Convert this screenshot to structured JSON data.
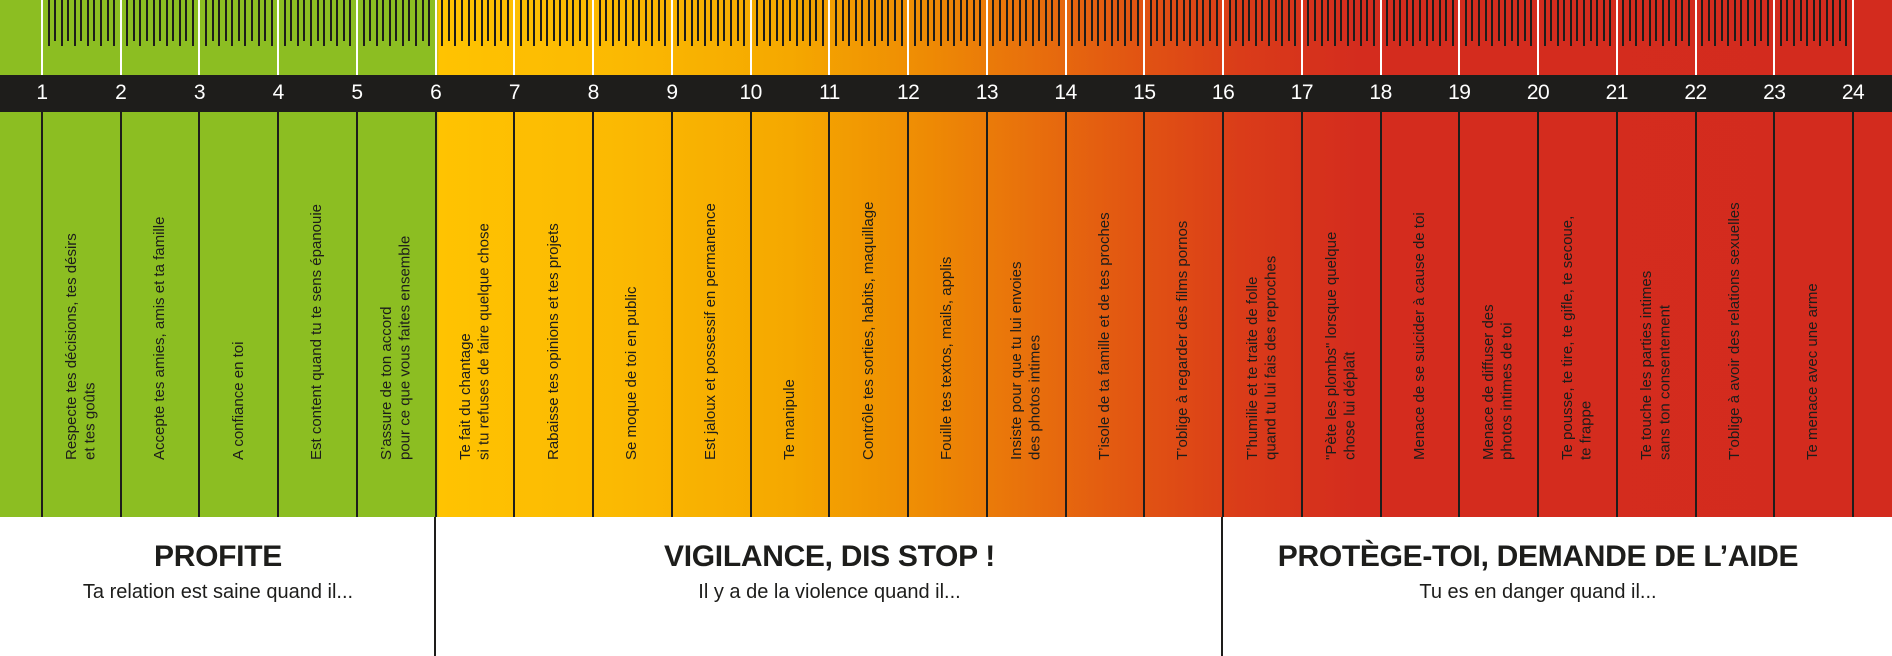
{
  "scale": {
    "numbers": [
      "1",
      "2",
      "3",
      "4",
      "5",
      "6",
      "7",
      "8",
      "9",
      "10",
      "11",
      "12",
      "13",
      "14",
      "15",
      "16",
      "17",
      "18",
      "19",
      "20",
      "21",
      "22",
      "23",
      "24"
    ]
  },
  "items": [
    {
      "n": 1,
      "label": "Respecte tes décisions, tes désirs\net tes goûts"
    },
    {
      "n": 2,
      "label": "Accepte tes amies, amis et ta famille"
    },
    {
      "n": 3,
      "label": "A confiance en toi"
    },
    {
      "n": 4,
      "label": "Est content quand tu te sens épanouie"
    },
    {
      "n": 5,
      "label": "S’assure de ton accord\npour ce que vous faites ensemble"
    },
    {
      "n": 6,
      "label": "Te fait du chantage\nsi tu refuses de faire quelque chose"
    },
    {
      "n": 7,
      "label": "Rabaisse tes opinions et tes projets"
    },
    {
      "n": 8,
      "label": "Se moque de toi en public"
    },
    {
      "n": 9,
      "label": "Est jaloux et possessif en permanence"
    },
    {
      "n": 10,
      "label": "Te manipule"
    },
    {
      "n": 11,
      "label": "Contrôle tes sorties, habits, maquillage"
    },
    {
      "n": 12,
      "label": "Fouille tes textos, mails, applis"
    },
    {
      "n": 13,
      "label": "Insiste pour que tu lui envoies\ndes photos intimes"
    },
    {
      "n": 14,
      "label": "T’isole de ta famille et de tes proches"
    },
    {
      "n": 15,
      "label": "T’oblige à regarder des films pornos"
    },
    {
      "n": 16,
      "label": "T’humilie et te traite de folle\nquand tu lui fais des reproches"
    },
    {
      "n": 17,
      "label": "\"Pète les plombs\" lorsque quelque\nchose lui déplaît"
    },
    {
      "n": 18,
      "label": "Menace de se suicider à cause de toi"
    },
    {
      "n": 19,
      "label": "Menace de diffuser des\nphotos intimes de toi"
    },
    {
      "n": 20,
      "label": "Te pousse, te tire, te gifle, te secoue,\nte frappe"
    },
    {
      "n": 21,
      "label": "Te touche les parties intimes\nsans ton consentement"
    },
    {
      "n": 22,
      "label": "T’oblige à avoir des relations sexuelles"
    },
    {
      "n": 23,
      "label": "Te menace avec une arme"
    }
  ],
  "sections": [
    {
      "id": "profite",
      "title": "PROFITE",
      "subtitle": "Ta relation est saine quand il...",
      "start": 1,
      "end": 6,
      "color": "#8CBE22"
    },
    {
      "id": "vigilance",
      "title": "VIGILANCE, DIS STOP !",
      "subtitle": "Il y a de la violence quand il...",
      "start": 6,
      "end": 16,
      "color": "#F5A800"
    },
    {
      "id": "protege",
      "title": "PROTÈGE-TOI, DEMANDE DE L’AIDE",
      "subtitle": "Tu es en danger quand il...",
      "start": 16,
      "end": 24,
      "color": "#D32B1E"
    }
  ],
  "colors": {
    "green": "#8CBE22",
    "yellow": "#FFC301",
    "orange": "#EE8A04",
    "red": "#D32B1E",
    "strip_black": "#1E1D1B",
    "text_black": "#1D1D1B",
    "major_line_white": "#FFFFFF"
  }
}
